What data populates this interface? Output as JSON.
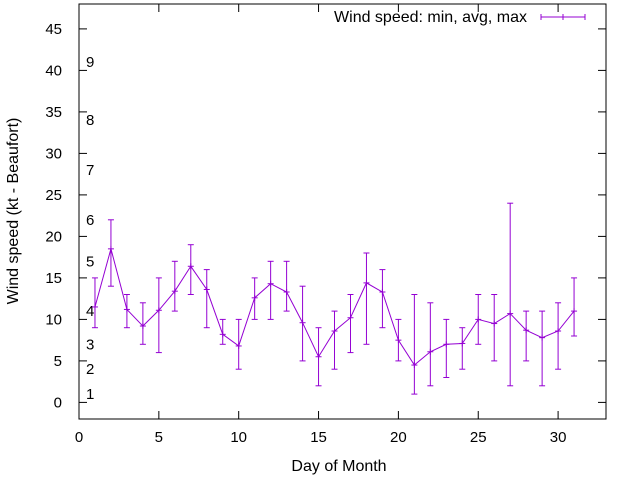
{
  "chart_data": {
    "type": "line",
    "xlabel": "Day of Month",
    "ylabel": "Wind speed (kt - Beaufort)",
    "xlim": [
      0,
      33
    ],
    "ylim": [
      -2,
      48
    ],
    "xticks": [
      0,
      5,
      10,
      15,
      20,
      25,
      30
    ],
    "yticks": [
      0,
      5,
      10,
      15,
      20,
      25,
      30,
      35,
      40,
      45
    ],
    "grid": false,
    "legend_position": "top-right",
    "series": [
      {
        "name": "Wind speed: min, avg, max",
        "color": "#9400d3",
        "x": [
          1,
          2,
          3,
          4,
          5,
          6,
          7,
          8,
          9,
          10,
          11,
          12,
          13,
          14,
          15,
          16,
          17,
          18,
          19,
          20,
          21,
          22,
          23,
          24,
          25,
          26,
          27,
          28,
          29,
          30,
          31
        ],
        "avg": [
          11.5,
          18.5,
          11.2,
          9.2,
          11.1,
          13.4,
          16.4,
          13.6,
          8.2,
          6.8,
          12.6,
          14.3,
          13.3,
          9.6,
          5.5,
          8.6,
          10.2,
          14.4,
          13.3,
          7.5,
          4.5,
          6.1,
          7,
          7.1,
          10,
          9.5,
          10.7,
          8.7,
          7.8,
          8.6,
          11
        ],
        "min": [
          9,
          14,
          9,
          7,
          6,
          11,
          13,
          9,
          7,
          4,
          10,
          10,
          11,
          5,
          2,
          4,
          6,
          7,
          9,
          5,
          1,
          2,
          3,
          4,
          7,
          5,
          2,
          5,
          2,
          4,
          8
        ],
        "max": [
          15,
          22,
          13,
          12,
          15,
          17,
          19,
          16,
          10,
          10,
          15,
          17,
          17,
          14,
          9,
          11,
          13,
          18,
          16,
          10,
          13,
          12,
          10,
          9,
          13,
          13,
          24,
          11,
          11,
          12,
          15
        ]
      }
    ],
    "beaufort_labels": [
      {
        "text": "1",
        "y": 1
      },
      {
        "text": "2",
        "y": 4
      },
      {
        "text": "3",
        "y": 7
      },
      {
        "text": "4",
        "y": 11
      },
      {
        "text": "5",
        "y": 17
      },
      {
        "text": "6",
        "y": 22
      },
      {
        "text": "7",
        "y": 28
      },
      {
        "text": "8",
        "y": 34
      },
      {
        "text": "9",
        "y": 41
      }
    ]
  }
}
